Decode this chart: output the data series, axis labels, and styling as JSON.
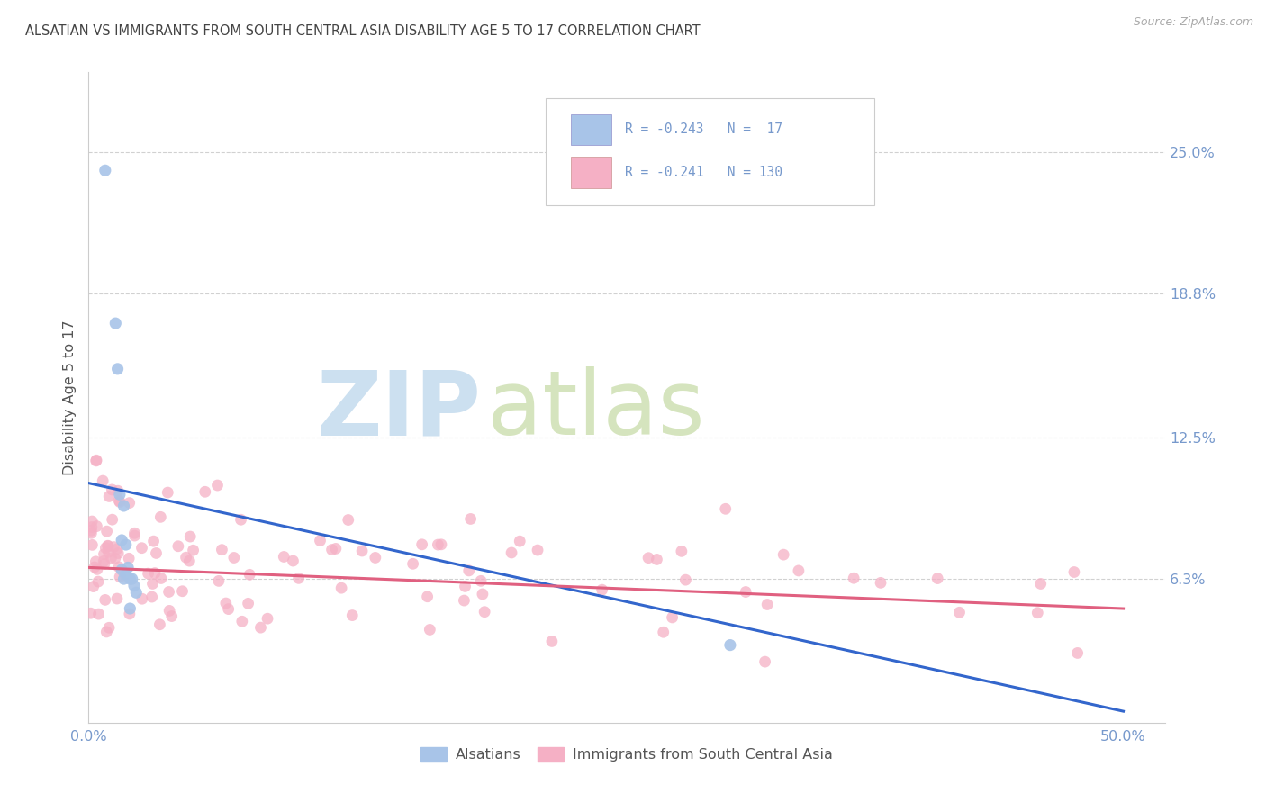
{
  "title": "ALSATIAN VS IMMIGRANTS FROM SOUTH CENTRAL ASIA DISABILITY AGE 5 TO 17 CORRELATION CHART",
  "source": "Source: ZipAtlas.com",
  "ylabel_label": "Disability Age 5 to 17",
  "ylabel_ticks": [
    "6.3%",
    "12.5%",
    "18.8%",
    "25.0%"
  ],
  "xlabel_ticks": [
    "0.0%",
    "50.0%"
  ],
  "ytick_vals": [
    0.063,
    0.125,
    0.188,
    0.25
  ],
  "xtick_vals": [
    0.0,
    0.5
  ],
  "xlim": [
    0.0,
    0.52
  ],
  "ylim": [
    0.0,
    0.285
  ],
  "legend_text_blue": "R = -0.243   N =  17",
  "legend_text_pink": "R = -0.241   N = 130",
  "blue_label": "Alsatians",
  "pink_label": "Immigrants from South Central Asia",
  "blue_color": "#a8c4e8",
  "pink_color": "#f5b0c5",
  "blue_line_color": "#3366cc",
  "pink_line_color": "#e06080",
  "bg_color": "#ffffff",
  "grid_color": "#cccccc",
  "title_color": "#444444",
  "axis_color": "#7799cc",
  "source_color": "#aaaaaa",
  "label_color": "#555555",
  "watermark_zip_color": "#cce0f0",
  "watermark_atlas_color": "#c8dca8"
}
